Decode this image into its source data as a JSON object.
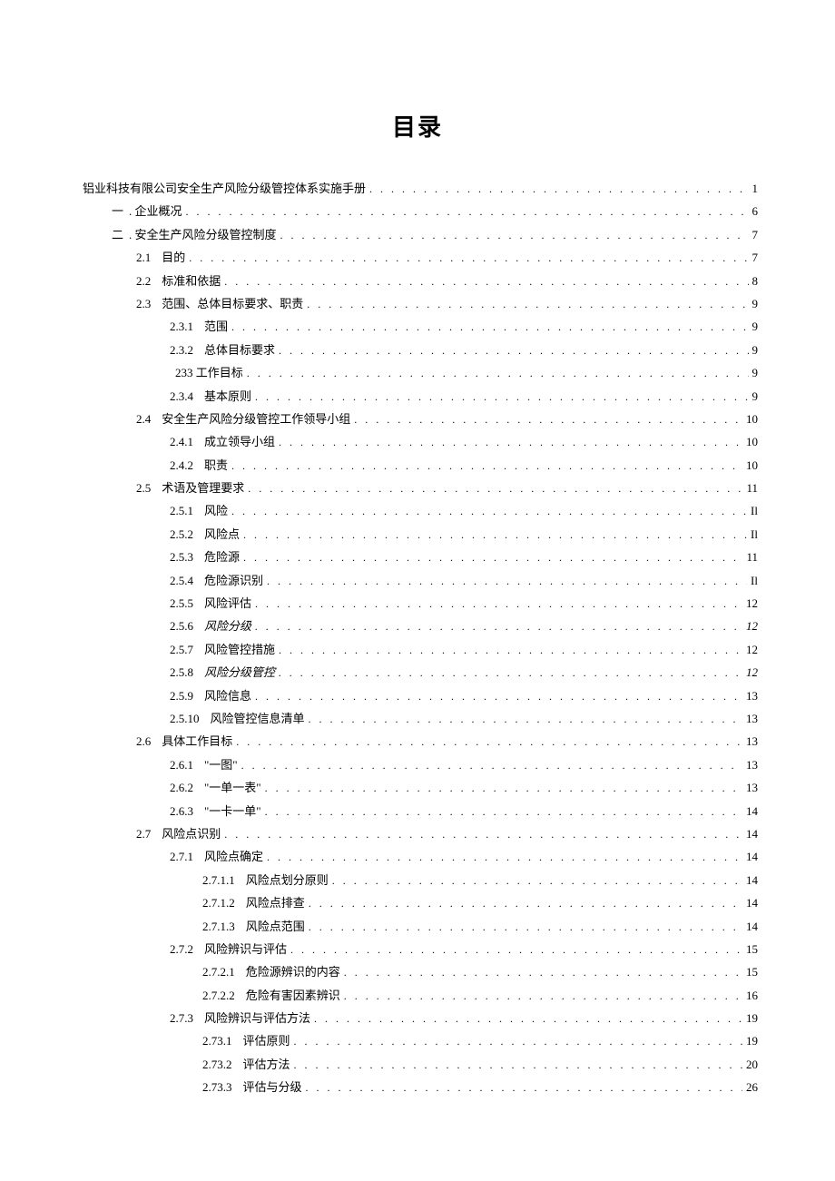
{
  "doc_title": "目录",
  "background_color": "#ffffff",
  "text_color": "#000000",
  "font_family": "SimSun",
  "title_fontsize": 26,
  "body_fontsize": 13,
  "line_height": 1.95,
  "entries": [
    {
      "level": 0,
      "num": "",
      "label": "铝业科技有限公司安全生产风险分级管控体系实施手册",
      "page": "1",
      "tight": true
    },
    {
      "level": 1,
      "num": "一",
      "label": ". 企业概况",
      "page": "6",
      "tight": true
    },
    {
      "level": 1,
      "num": "二",
      "label": ". 安全生产风险分级管控制度",
      "page": "7",
      "tight": true
    },
    {
      "level": 2,
      "num": "2.1",
      "label": "目的",
      "page": "7"
    },
    {
      "level": 2,
      "num": "2.2",
      "label": "标准和依据",
      "page": "8"
    },
    {
      "level": 2,
      "num": "2.3",
      "label": "范围、总体目标要求、职责",
      "page": "9"
    },
    {
      "level": 3,
      "num": "2.3.1",
      "label": "范围",
      "page": "9"
    },
    {
      "level": 3,
      "num": "2.3.2",
      "label": "总体目标要求",
      "page": "9"
    },
    {
      "level": 3,
      "num": "",
      "label": "233 工作目标",
      "page": "9",
      "tight": true
    },
    {
      "level": 3,
      "num": "2.3.4",
      "label": "基本原则",
      "page": "9"
    },
    {
      "level": 2,
      "num": "2.4",
      "label": "安全生产风险分级管控工作领导小组",
      "page": "10"
    },
    {
      "level": 3,
      "num": "2.4.1",
      "label": "成立领导小组",
      "page": "10"
    },
    {
      "level": 3,
      "num": "2.4.2",
      "label": "职责",
      "page": "10"
    },
    {
      "level": 2,
      "num": "2.5",
      "label": "术语及管理要求",
      "page": "11"
    },
    {
      "level": 3,
      "num": "2.5.1",
      "label": "风险",
      "page": "Il"
    },
    {
      "level": 3,
      "num": "2.5.2",
      "label": "风险点",
      "page": "Il"
    },
    {
      "level": 3,
      "num": "2.5.3",
      "label": "危险源",
      "page": "11"
    },
    {
      "level": 3,
      "num": "2.5.4",
      "label": "危险源识别",
      "page": "Il"
    },
    {
      "level": 3,
      "num": "2.5.5",
      "label": "风险评估",
      "page": "12"
    },
    {
      "level": 3,
      "num": "2.5.6",
      "label": "风险分级",
      "page": "12",
      "italic": true
    },
    {
      "level": 3,
      "num": "2.5.7",
      "label": "风险管控措施",
      "page": "12"
    },
    {
      "level": 3,
      "num": "2.5.8",
      "label": "风险分级管控",
      "page": "12",
      "italic": true
    },
    {
      "level": 3,
      "num": "2.5.9",
      "label": "风险信息",
      "page": "13"
    },
    {
      "level": 3,
      "num": "2.5.10",
      "label": "风险管控信息清单",
      "page": "13"
    },
    {
      "level": 2,
      "num": "2.6",
      "label": "具体工作目标",
      "page": "13"
    },
    {
      "level": 3,
      "num": "2.6.1",
      "label": "\"一图\"",
      "page": "13"
    },
    {
      "level": 3,
      "num": "2.6.2",
      "label": "\"一单一表\"",
      "page": "13"
    },
    {
      "level": 3,
      "num": "2.6.3",
      "label": "\"一卡一单\"",
      "page": "14"
    },
    {
      "level": 2,
      "num": "2.7",
      "label": "风险点识别",
      "page": "14"
    },
    {
      "level": 3,
      "num": "2.7.1",
      "label": "风险点确定",
      "page": "14"
    },
    {
      "level": 4,
      "num": "2.7.1.1",
      "label": "风险点划分原则",
      "page": "14"
    },
    {
      "level": 4,
      "num": "2.7.1.2",
      "label": "风险点排查",
      "page": "14"
    },
    {
      "level": 4,
      "num": "2.7.1.3",
      "label": "风险点范围",
      "page": "14"
    },
    {
      "level": 3,
      "num": "2.7.2",
      "label": "风险辨识与评估",
      "page": "15"
    },
    {
      "level": 4,
      "num": "2.7.2.1",
      "label": "危险源辨识的内容",
      "page": "15"
    },
    {
      "level": 4,
      "num": "2.7.2.2",
      "label": "危险有害因素辨识",
      "page": "16"
    },
    {
      "level": 3,
      "num": "2.7.3",
      "label": "风险辨识与评估方法",
      "page": "19"
    },
    {
      "level": 4,
      "num": "2.73.1",
      "label": "评估原则",
      "page": "19"
    },
    {
      "level": 4,
      "num": "2.73.2",
      "label": "评估方法",
      "page": "20"
    },
    {
      "level": 4,
      "num": "2.73.3",
      "label": "评估与分级",
      "page": "26"
    }
  ]
}
